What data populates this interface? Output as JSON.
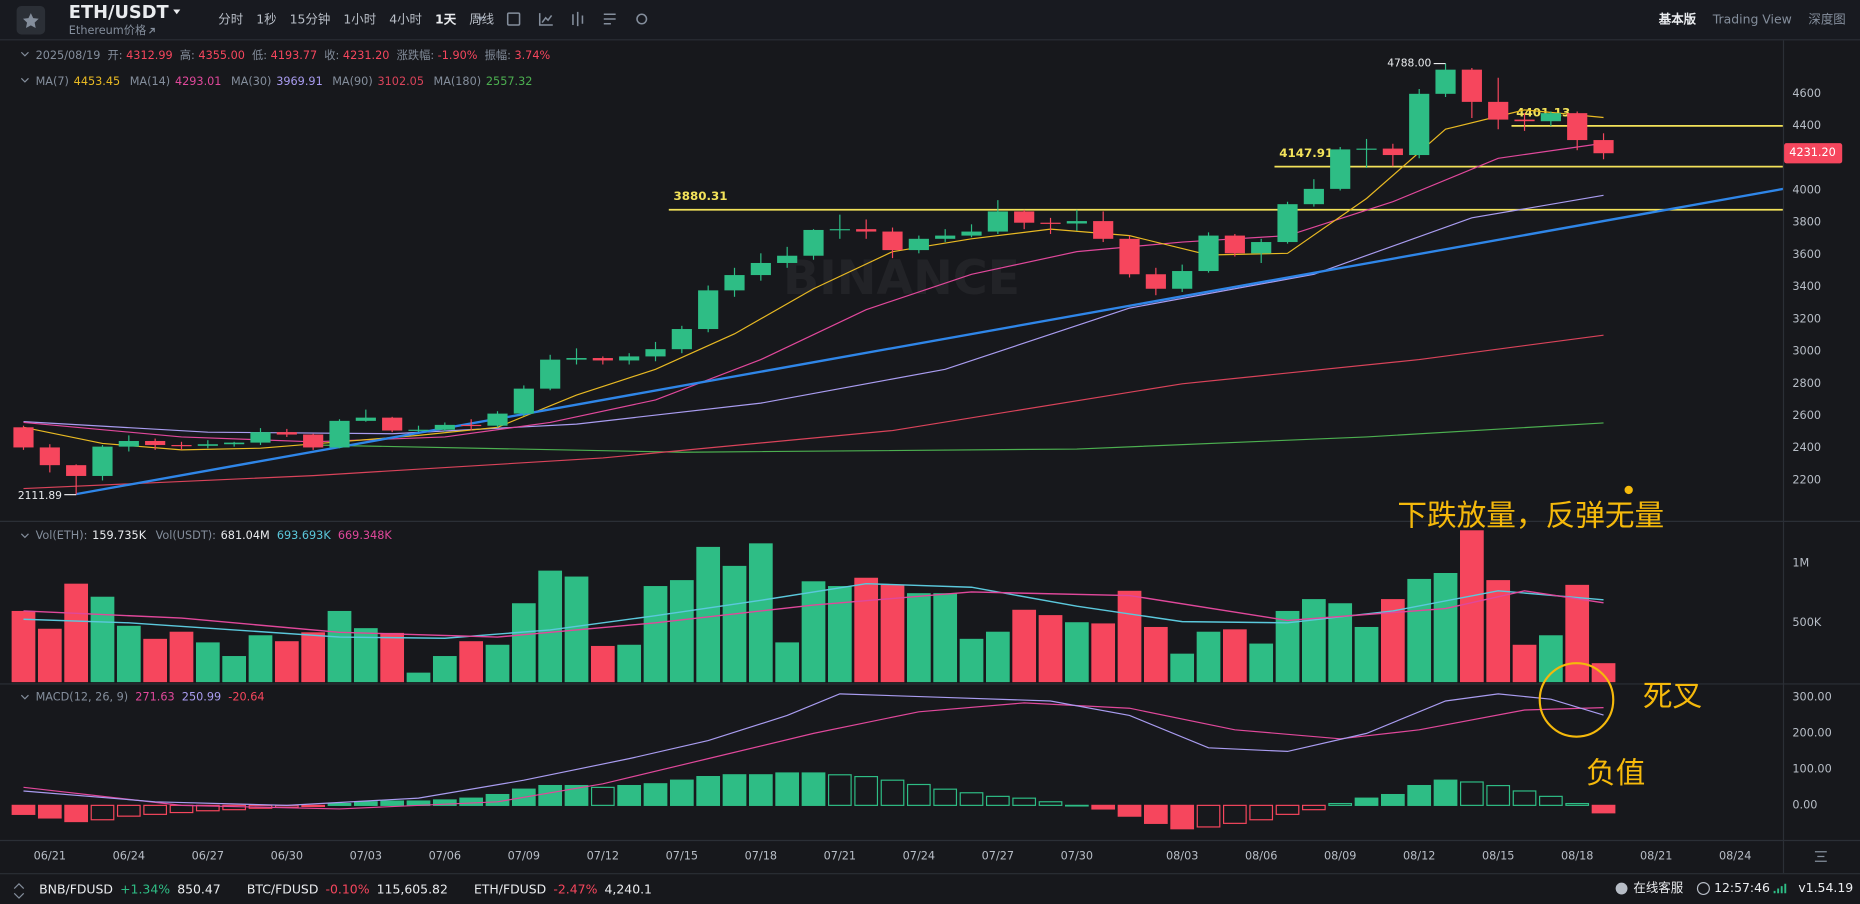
{
  "header": {
    "symbol": "ETH/USDT",
    "subtitle": "Ethereum价格",
    "intervals": [
      "分时",
      "1秒",
      "15分钟",
      "1小时",
      "4小时",
      "1天",
      "周线"
    ],
    "active_interval": 5,
    "views": [
      "基本版",
      "Trading View",
      "深度图"
    ],
    "active_view": 0
  },
  "ohlc_info": {
    "date": "2025/08/19",
    "labels": [
      "开:",
      "高:",
      "低:",
      "收:",
      "涨跌幅:",
      "振幅:"
    ],
    "values": [
      "4312.99",
      "4355.00",
      "4193.77",
      "4231.20",
      "-1.90%",
      "3.74%"
    ]
  },
  "volume_info": {
    "labels": [
      "Vol(ETH):",
      "Vol(USDT):"
    ],
    "values": [
      "159.735K",
      "681.04M"
    ],
    "ma_values": [
      "693.693K",
      "669.348K"
    ]
  },
  "watermark": "BINANCE",
  "chart_data": {
    "type": "candlestick",
    "x": [
      "06/20",
      "06/21",
      "06/22",
      "06/23",
      "06/24",
      "06/25",
      "06/26",
      "06/27",
      "06/28",
      "06/29",
      "06/30",
      "07/01",
      "07/02",
      "07/03",
      "07/04",
      "07/05",
      "07/06",
      "07/07",
      "07/08",
      "07/09",
      "07/10",
      "07/11",
      "07/12",
      "07/13",
      "07/14",
      "07/15",
      "07/16",
      "07/17",
      "07/18",
      "07/19",
      "07/20",
      "07/21",
      "07/22",
      "07/23",
      "07/24",
      "07/25",
      "07/26",
      "07/27",
      "07/28",
      "07/29",
      "07/30",
      "07/31",
      "08/01",
      "08/02",
      "08/03",
      "08/04",
      "08/05",
      "08/06",
      "08/07",
      "08/08",
      "08/09",
      "08/10",
      "08/11",
      "08/12",
      "08/13",
      "08/14",
      "08/15",
      "08/16",
      "08/17",
      "08/18",
      "08/19"
    ],
    "open": [
      2530,
      2405,
      2295,
      2228,
      2410,
      2445,
      2420,
      2415,
      2425,
      2435,
      2500,
      2485,
      2405,
      2570,
      2590,
      2510,
      2515,
      2545,
      2540,
      2615,
      2770,
      2950,
      2960,
      2945,
      2970,
      3015,
      3140,
      3380,
      3475,
      3550,
      3595,
      3755,
      3760,
      3745,
      3630,
      3700,
      3720,
      3745,
      3870,
      3800,
      3795,
      3810,
      3700,
      3480,
      3390,
      3500,
      3720,
      3610,
      3680,
      3915,
      4010,
      4255,
      4260,
      4220,
      4600,
      4750,
      4550,
      4440,
      4430,
      4480,
      4312.99
    ],
    "high": [
      2540,
      2425,
      2300,
      2420,
      2480,
      2460,
      2440,
      2450,
      2440,
      2525,
      2520,
      2490,
      2580,
      2640,
      2595,
      2540,
      2560,
      2580,
      2630,
      2790,
      2980,
      3020,
      2970,
      2990,
      3060,
      3160,
      3410,
      3520,
      3610,
      3650,
      3760,
      3850,
      3820,
      3770,
      3720,
      3760,
      3790,
      3940,
      3880,
      3830,
      3880,
      3870,
      3720,
      3520,
      3540,
      3740,
      3730,
      3700,
      3930,
      4070,
      4270,
      4320,
      4290,
      4630,
      4788,
      4760,
      4700,
      4480,
      4490,
      4490,
      4355
    ],
    "low": [
      2390,
      2250,
      2111.89,
      2200,
      2380,
      2390,
      2390,
      2400,
      2410,
      2420,
      2470,
      2390,
      2400,
      2565,
      2500,
      2500,
      2505,
      2510,
      2530,
      2600,
      2760,
      2920,
      2920,
      2920,
      2940,
      2990,
      3120,
      3340,
      3440,
      3520,
      3570,
      3700,
      3700,
      3580,
      3610,
      3680,
      3710,
      3730,
      3760,
      3730,
      3750,
      3680,
      3460,
      3350,
      3370,
      3490,
      3590,
      3550,
      3670,
      3900,
      4000,
      4140,
      4150,
      4200,
      4580,
      4450,
      4380,
      4370,
      4400,
      4250,
      4193.77
    ],
    "close": [
      2405,
      2295,
      2228,
      2410,
      2445,
      2420,
      2415,
      2425,
      2435,
      2500,
      2485,
      2405,
      2570,
      2590,
      2510,
      2515,
      2545,
      2540,
      2615,
      2770,
      2950,
      2960,
      2945,
      2970,
      3015,
      3140,
      3380,
      3475,
      3550,
      3595,
      3755,
      3760,
      3745,
      3630,
      3700,
      3720,
      3745,
      3870,
      3800,
      3795,
      3810,
      3700,
      3480,
      3390,
      3500,
      3720,
      3610,
      3680,
      3915,
      4010,
      4255,
      4260,
      4220,
      4600,
      4750,
      4550,
      4440,
      4430,
      4480,
      4312.99,
      4231.2
    ],
    "up_color": "#2ebd85",
    "down_color": "#f6465d",
    "ylim": [
      1957,
      4917
    ],
    "yticks": [
      2200,
      2400,
      2600,
      2800,
      3000,
      3200,
      3400,
      3600,
      3800,
      4000,
      4200,
      4400,
      4600
    ],
    "xticks": [
      "06/21",
      "06/24",
      "06/27",
      "06/30",
      "07/03",
      "07/06",
      "07/09",
      "07/12",
      "07/15",
      "07/18",
      "07/21",
      "07/24",
      "07/27",
      "07/30",
      "08/03",
      "08/06",
      "08/09",
      "08/12",
      "08/15",
      "08/18",
      "08/21",
      "08/24"
    ],
    "ma": [
      {
        "name": "MA(7)",
        "color": "#e8b923",
        "x": [
          "06/20",
          "06/23",
          "06/26",
          "06/29",
          "07/02",
          "07/05",
          "07/08",
          "07/11",
          "07/14",
          "07/17",
          "07/20",
          "07/23",
          "07/26",
          "07/29",
          "08/01",
          "08/04",
          "08/07",
          "08/10",
          "08/13",
          "08/16",
          "08/19"
        ],
        "values": [
          2530,
          2430,
          2390,
          2400,
          2440,
          2480,
          2530,
          2730,
          2890,
          3110,
          3390,
          3620,
          3700,
          3760,
          3720,
          3600,
          3610,
          3950,
          4380,
          4500,
          4453.45
        ]
      },
      {
        "name": "MA(14)",
        "color": "#e0489b",
        "x": [
          "06/20",
          "06/26",
          "07/01",
          "07/06",
          "07/10",
          "07/14",
          "07/18",
          "07/22",
          "07/26",
          "07/30",
          "08/03",
          "08/07",
          "08/11",
          "08/15",
          "08/19"
        ],
        "values": [
          2560,
          2470,
          2440,
          2470,
          2560,
          2700,
          2950,
          3260,
          3480,
          3620,
          3680,
          3720,
          3930,
          4200,
          4293.01
        ]
      },
      {
        "name": "MA(30)",
        "color": "#a99cf0",
        "x": [
          "06/20",
          "06/27",
          "07/04",
          "07/11",
          "07/18",
          "07/25",
          "08/01",
          "08/08",
          "08/14",
          "08/19"
        ],
        "values": [
          2565,
          2500,
          2490,
          2550,
          2680,
          2890,
          3270,
          3480,
          3830,
          3969.91
        ]
      },
      {
        "name": "MA(90)",
        "color": "#d9435a",
        "x": [
          "06/20",
          "07/01",
          "07/12",
          "07/23",
          "08/03",
          "08/12",
          "08/19"
        ],
        "values": [
          2150,
          2230,
          2340,
          2510,
          2800,
          2950,
          3102.05
        ]
      },
      {
        "name": "MA(180)",
        "color": "#4caf50",
        "x": [
          "07/01",
          "07/15",
          "07/30",
          "08/10",
          "08/19"
        ],
        "values": [
          2420,
          2375,
          2395,
          2470,
          2557.32
        ]
      }
    ],
    "trendline": {
      "color": "#2f86e8",
      "x": [
        "06/22",
        "08/26"
      ],
      "values": [
        2115,
        4015
      ]
    },
    "levels": [
      {
        "value": 3880.31,
        "from": "07/15"
      },
      {
        "value": 4147.91,
        "from": "08/07"
      },
      {
        "value": 4401.13,
        "from": "08/16"
      }
    ],
    "level_color": "#f3e25a",
    "high_marker": {
      "x": "08/13",
      "value": 4788,
      "label": "4788.00"
    },
    "low_marker": {
      "x": "06/22",
      "value": 2111.89
    },
    "volume": {
      "values": [
        600000,
        450000,
        830000,
        720000,
        475000,
        365000,
        425000,
        335000,
        220000,
        395000,
        345000,
        420000,
        600000,
        455000,
        415000,
        80000,
        220000,
        345000,
        315000,
        665000,
        940000,
        890000,
        305000,
        315000,
        810000,
        860000,
        1140000,
        980000,
        1170000,
        335000,
        850000,
        810000,
        880000,
        820000,
        750000,
        750000,
        365000,
        425000,
        610000,
        565000,
        505000,
        495000,
        770000,
        465000,
        240000,
        425000,
        445000,
        325000,
        600000,
        700000,
        665000,
        465000,
        700000,
        870000,
        920000,
        1280000,
        860000,
        315000,
        395000,
        820000,
        159735
      ],
      "ylim": [
        0,
        1350000
      ],
      "yticks": [
        {
          "value": 500000,
          "label": "500K"
        },
        {
          "value": 1000000,
          "label": "1M"
        }
      ],
      "ma": [
        {
          "color": "#5bc8dc",
          "x": [
            "06/20",
            "06/24",
            "06/28",
            "07/02",
            "07/06",
            "07/10",
            "07/14",
            "07/18",
            "07/22",
            "07/26",
            "07/30",
            "08/03",
            "08/07",
            "08/11",
            "08/15",
            "08/19"
          ],
          "values": [
            530000,
            500000,
            440000,
            380000,
            370000,
            440000,
            560000,
            690000,
            830000,
            800000,
            640000,
            510000,
            500000,
            600000,
            770000,
            693693
          ]
        },
        {
          "color": "#e0489b",
          "x": [
            "06/20",
            "06/26",
            "07/02",
            "07/08",
            "07/14",
            "07/20",
            "07/26",
            "08/01",
            "08/07",
            "08/13",
            "08/16",
            "08/19"
          ],
          "values": [
            600000,
            540000,
            420000,
            380000,
            500000,
            650000,
            760000,
            730000,
            520000,
            620000,
            770000,
            669348
          ]
        }
      ]
    },
    "macd": {
      "name": "MACD(12, 26, 9)",
      "hist": [
        -25,
        -35,
        -45,
        -40,
        -30,
        -25,
        -20,
        -15,
        -12,
        -8,
        -5,
        -3,
        5,
        10,
        12,
        12,
        15,
        20,
        30,
        45,
        55,
        55,
        50,
        55,
        60,
        70,
        80,
        85,
        85,
        90,
        90,
        85,
        80,
        70,
        58,
        45,
        35,
        25,
        20,
        10,
        0,
        -10,
        -30,
        -50,
        -65,
        -60,
        -50,
        -40,
        -25,
        -12,
        5,
        20,
        30,
        55,
        70,
        65,
        55,
        40,
        25,
        5,
        -20.64
      ],
      "lines": [
        {
          "color": "#e0489b",
          "x": [
            "06/20",
            "06/26",
            "07/02",
            "07/08",
            "07/12",
            "07/16",
            "07/20",
            "07/24",
            "07/28",
            "08/01",
            "08/05",
            "08/09",
            "08/12",
            "08/16",
            "08/19"
          ],
          "values": [
            50,
            0,
            -10,
            10,
            60,
            130,
            200,
            260,
            285,
            270,
            210,
            185,
            210,
            265,
            271.63
          ]
        },
        {
          "color": "#a99cf0",
          "x": [
            "06/20",
            "06/25",
            "06/30",
            "07/05",
            "07/09",
            "07/13",
            "07/16",
            "07/19",
            "07/21",
            "07/25",
            "07/29",
            "08/01",
            "08/04",
            "08/07",
            "08/10",
            "08/13",
            "08/15",
            "08/17",
            "08/19"
          ],
          "values": [
            40,
            10,
            0,
            20,
            70,
            130,
            180,
            250,
            310,
            300,
            290,
            250,
            160,
            150,
            200,
            290,
            310,
            295,
            250.99
          ]
        }
      ],
      "ylim": [
        -96,
        336
      ],
      "yticks": [
        {
          "value": 300,
          "label": "300.00"
        },
        {
          "value": 200,
          "label": "200.00"
        },
        {
          "value": 100,
          "label": "100.00"
        },
        {
          "value": 0,
          "label": "0.00"
        }
      ]
    }
  },
  "annotations": {
    "volume_note": "下跌放量，反弹无量",
    "cross_note": "死叉",
    "negative_note": "负值",
    "color": "#f5b90b"
  },
  "footer": {
    "tickers": [
      {
        "symbol": "BNB/FDUSD",
        "change": "+1.34%",
        "price": "850.47"
      },
      {
        "symbol": "BTC/FDUSD",
        "change": "-0.10%",
        "price": "115,605.82"
      },
      {
        "symbol": "ETH/FDUSD",
        "change": "-2.47%",
        "price": "4,240.1"
      }
    ],
    "support": "在线客服",
    "time": "12:57:46",
    "version": "v1.54.19"
  }
}
